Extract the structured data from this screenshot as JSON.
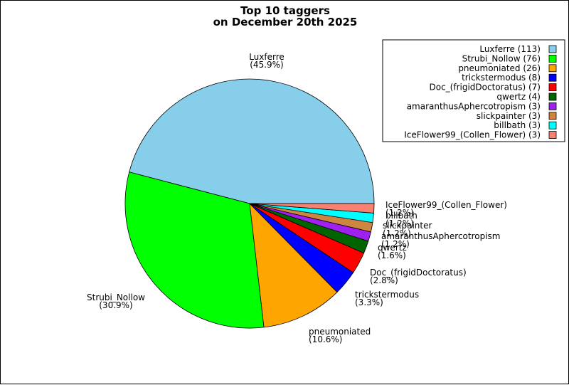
{
  "chart_data": {
    "type": "pie",
    "title_lines": [
      "Top 10 taggers",
      "on December 20th 2025"
    ],
    "slices": [
      {
        "name": "Luxferre",
        "count": 113,
        "percent": "45.9%",
        "color": "#87ceeb"
      },
      {
        "name": "Strubi_Nollow",
        "count": 76,
        "percent": "30.9%",
        "color": "#00ff00"
      },
      {
        "name": "pneumoniated",
        "count": 26,
        "percent": "10.6%",
        "color": "#ffa500"
      },
      {
        "name": "trickstermodus",
        "count": 8,
        "percent": "3.3%",
        "color": "#0000ff"
      },
      {
        "name": "Doc_(frigidDoctoratus)",
        "count": 7,
        "percent": "2.8%",
        "color": "#ff0000"
      },
      {
        "name": "qwertz",
        "count": 4,
        "percent": "1.6%",
        "color": "#006400"
      },
      {
        "name": "amaranthusAphercotropism",
        "count": 3,
        "percent": "1.2%",
        "color": "#a020f0"
      },
      {
        "name": "slickpainter",
        "count": 3,
        "percent": "1.2%",
        "color": "#cd853f"
      },
      {
        "name": "billbath",
        "count": 3,
        "percent": "1.2%",
        "color": "#00ffff"
      },
      {
        "name": "IceFlower99_(Collen_Flower)",
        "count": 3,
        "percent": "1.2%",
        "color": "#fa8072"
      }
    ],
    "legend_items": [
      "Luxferre (113)",
      "Strubi_Nollow (76)",
      "pneumoniated (26)",
      "trickstermodus (8)",
      "Doc_(frigidDoctoratus) (7)",
      "qwertz (4)",
      "amaranthusAphercotropism (3)",
      "slickpainter (3)",
      "billbath (3)",
      "IceFlower99_(Collen_Flower) (3)"
    ],
    "slice_labels": [
      {
        "name": "Luxferre",
        "pct": "(45.9%)"
      },
      {
        "name": "Strubi_Nollow",
        "pct": "(30.9%)"
      },
      {
        "name": "pneumoniated",
        "pct": "(10.6%)"
      },
      {
        "name": "trickstermodus",
        "pct": "(3.3%)"
      },
      {
        "name": "Doc_(frigidDoctoratus)",
        "pct": "(2.8%)"
      },
      {
        "name": "qwertz",
        "pct": "(1.6%)"
      },
      {
        "name": "amaranthusAphercotropism",
        "pct": "(1.2%)"
      },
      {
        "name": "slickpainter",
        "pct": "(1.2%)"
      },
      {
        "name": "billbath",
        "pct": "(1.2%)"
      },
      {
        "name": "IceFlower99_(Collen_Flower)",
        "pct": "(1.2%)"
      }
    ],
    "start_direction": "east",
    "direction": "counterclockwise",
    "legend_placement": "top-right"
  }
}
